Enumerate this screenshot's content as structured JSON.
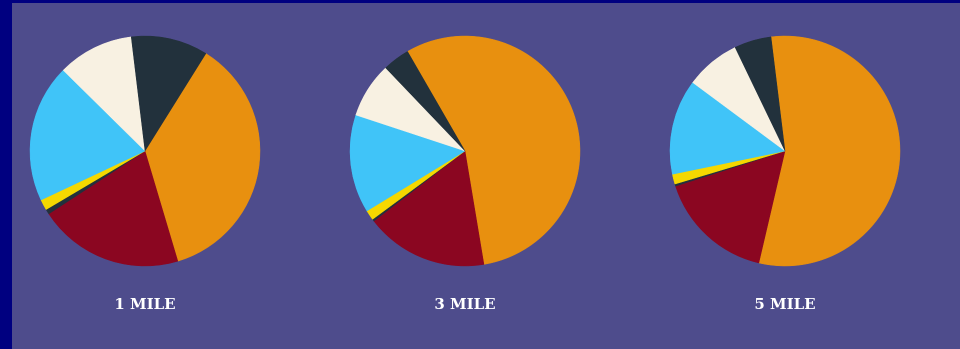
{
  "colors": {
    "page_border": "#000080",
    "background": "#4e4c8c",
    "label_text": "#ffffff"
  },
  "chart_data": [
    {
      "type": "pie",
      "title": "1 MILE",
      "slices": [
        {
          "color": "#e8900f",
          "value": 36.5
        },
        {
          "color": "#8b0621",
          "value": 20.4
        },
        {
          "color": "#22313c",
          "value": 0.7
        },
        {
          "color": "#f5d800",
          "value": 1.5
        },
        {
          "color": "#40c4f8",
          "value": 19.4
        },
        {
          "color": "#f8f1e2",
          "value": 10.7
        },
        {
          "color": "#22313c",
          "value": 10.8
        }
      ]
    },
    {
      "type": "pie",
      "title": "3 MILE",
      "slices": [
        {
          "color": "#e8900f",
          "value": 55.7
        },
        {
          "color": "#8b0621",
          "value": 17.2
        },
        {
          "color": "#22313c",
          "value": 0.3
        },
        {
          "color": "#f5d800",
          "value": 1.4
        },
        {
          "color": "#40c4f8",
          "value": 13.8
        },
        {
          "color": "#f8f1e2",
          "value": 7.8
        },
        {
          "color": "#22313c",
          "value": 3.8
        }
      ]
    },
    {
      "type": "pie",
      "title": "5 MILE",
      "slices": [
        {
          "color": "#e8900f",
          "value": 55.6
        },
        {
          "color": "#8b0621",
          "value": 16.4
        },
        {
          "color": "#22313c",
          "value": 0.3
        },
        {
          "color": "#f5d800",
          "value": 1.4
        },
        {
          "color": "#40c4f8",
          "value": 13.4
        },
        {
          "color": "#f8f1e2",
          "value": 7.7
        },
        {
          "color": "#22313c",
          "value": 5.2
        }
      ]
    }
  ]
}
